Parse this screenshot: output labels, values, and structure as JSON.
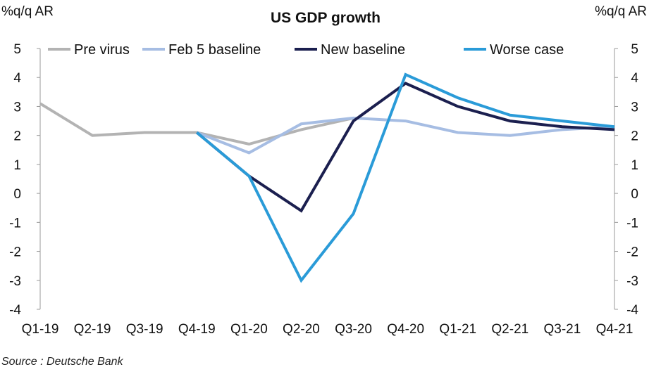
{
  "chart_data": {
    "type": "line",
    "title": "US GDP growth",
    "ylabel_left": "%q/q AR",
    "ylabel_right": "%q/q AR",
    "categories": [
      "Q1-19",
      "Q2-19",
      "Q3-19",
      "Q4-19",
      "Q1-20",
      "Q2-20",
      "Q3-20",
      "Q4-20",
      "Q1-21",
      "Q2-21",
      "Q3-21",
      "Q4-21"
    ],
    "ylim": [
      -4,
      5
    ],
    "yticks": [
      5,
      4,
      3,
      2,
      1,
      0,
      -1,
      -2,
      -3,
      -4
    ],
    "grid": false,
    "legend_position": "top",
    "series": [
      {
        "name": "Pre virus",
        "color": "#b3b3b3",
        "values": [
          3.1,
          2.0,
          2.1,
          2.1,
          1.7,
          2.2,
          2.6,
          null,
          null,
          null,
          null,
          null
        ]
      },
      {
        "name": "Feb 5 baseline",
        "color": "#a6bde3",
        "values": [
          null,
          null,
          null,
          2.1,
          1.4,
          2.4,
          2.6,
          2.5,
          2.1,
          2.0,
          2.2,
          2.3
        ]
      },
      {
        "name": "New baseline",
        "color": "#1b1f4f",
        "values": [
          null,
          null,
          null,
          2.1,
          0.6,
          -0.6,
          2.5,
          3.8,
          3.0,
          2.5,
          2.3,
          2.2
        ]
      },
      {
        "name": "Worse case",
        "color": "#2a9bd8",
        "values": [
          null,
          null,
          null,
          2.1,
          0.6,
          -3.0,
          -0.7,
          4.1,
          3.3,
          2.7,
          2.5,
          2.3
        ]
      }
    ]
  },
  "source": "Source : Deutsche Bank"
}
